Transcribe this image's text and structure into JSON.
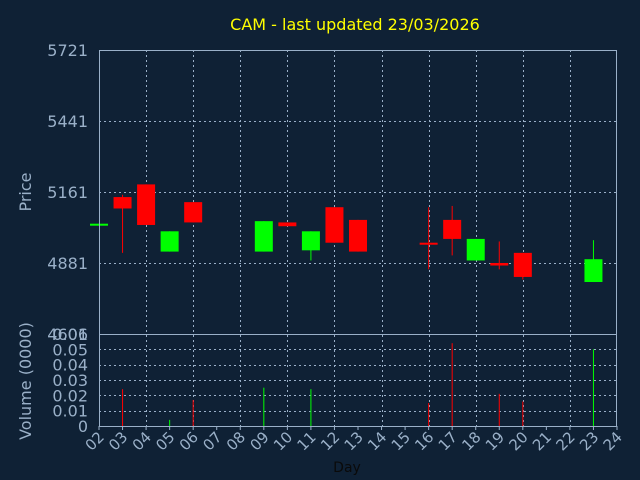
{
  "chart_data": {
    "type": "candlestick",
    "title": "CAM - last updated 23/03/2026",
    "xlabel": "Day",
    "colors": {
      "background": "#0f2135",
      "axes": "#9ab0c8",
      "grid": "#9ab0c8",
      "title": "#ffff00",
      "up": "#00ff00",
      "down": "#ff0000"
    },
    "price_panel": {
      "ylabel": "Price",
      "ylim": [
        4601,
        5721
      ],
      "y_ticks": [
        "5721",
        "5441",
        "5161",
        "4881",
        "4601"
      ],
      "grid": true
    },
    "volume_panel": {
      "ylabel": "Volume (0000)",
      "ylim": [
        0,
        0.06
      ],
      "y_ticks": [
        "0.06",
        "0.05",
        "0.04",
        "0.03",
        "0.02",
        "0.01",
        "0"
      ],
      "grid": true
    },
    "x_ticks": [
      "02",
      "03",
      "04",
      "05",
      "06",
      "07",
      "08",
      "09",
      "10",
      "11",
      "12",
      "13",
      "14",
      "15",
      "16",
      "17",
      "18",
      "19",
      "20",
      "21",
      "22",
      "23",
      "24"
    ],
    "x_range": [
      2,
      24
    ],
    "candles": [
      {
        "day": 2,
        "open": 5036,
        "high": 5036,
        "low": 5028,
        "close": 5036,
        "volume": 0.0
      },
      {
        "day": 3,
        "open": 5141,
        "high": 5150,
        "low": 4921,
        "close": 5096,
        "volume": 0.024
      },
      {
        "day": 4,
        "open": 5191,
        "high": 5191,
        "low": 5031,
        "close": 5031,
        "volume": 0.0
      },
      {
        "day": 5,
        "open": 4926,
        "high": 5006,
        "low": 4926,
        "close": 5006,
        "volume": 0.004
      },
      {
        "day": 6,
        "open": 5121,
        "high": 5121,
        "low": 5041,
        "close": 5041,
        "volume": 0.017
      },
      {
        "day": 9,
        "open": 4926,
        "high": 5046,
        "low": 4926,
        "close": 5046,
        "volume": 0.025
      },
      {
        "day": 10,
        "open": 5041,
        "high": 5041,
        "low": 5026,
        "close": 5026,
        "volume": 0.0
      },
      {
        "day": 11,
        "open": 4931,
        "high": 5006,
        "low": 4891,
        "close": 5006,
        "volume": 0.024
      },
      {
        "day": 12,
        "open": 5101,
        "high": 5101,
        "low": 4961,
        "close": 4961,
        "volume": 0.0
      },
      {
        "day": 13,
        "open": 5051,
        "high": 5051,
        "low": 4926,
        "close": 4926,
        "volume": 0.0
      },
      {
        "day": 16,
        "open": 4961,
        "high": 5101,
        "low": 4856,
        "close": 4956,
        "volume": 0.015
      },
      {
        "day": 17,
        "open": 5051,
        "high": 5106,
        "low": 4911,
        "close": 4976,
        "volume": 0.054
      },
      {
        "day": 18,
        "open": 4891,
        "high": 4976,
        "low": 4891,
        "close": 4976,
        "volume": 0.0
      },
      {
        "day": 19,
        "open": 4881,
        "high": 4966,
        "low": 4856,
        "close": 4871,
        "volume": 0.021
      },
      {
        "day": 20,
        "open": 4921,
        "high": 4921,
        "low": 4816,
        "close": 4826,
        "volume": 0.016
      },
      {
        "day": 23,
        "open": 4806,
        "high": 4971,
        "low": 4806,
        "close": 4896,
        "volume": 0.05
      }
    ]
  }
}
